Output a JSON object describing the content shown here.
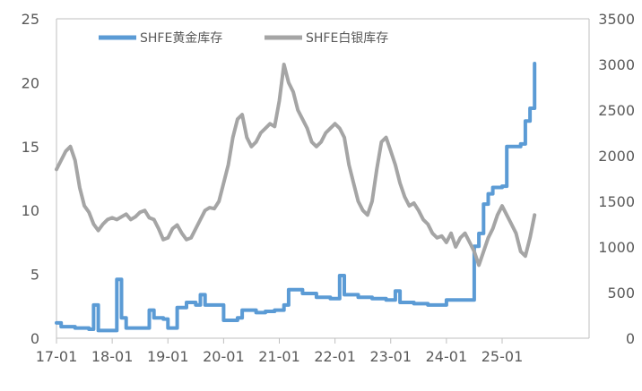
{
  "chart_data": {
    "type": "line",
    "legend": {
      "placement": "top"
    },
    "x_ticks": [
      "17-01",
      "18-01",
      "19-01",
      "20-01",
      "21-01",
      "22-01",
      "23-01",
      "24-01",
      "25-01"
    ],
    "y_left": {
      "ylim": [
        0,
        25
      ],
      "ticks": [
        "0",
        "5",
        "10",
        "15",
        "20",
        "25"
      ]
    },
    "y_right": {
      "ylim": [
        0,
        3500
      ],
      "ticks": [
        "0",
        "500",
        "1000",
        "1500",
        "2000",
        "2500",
        "3000",
        "3500"
      ]
    },
    "grid": false,
    "series": [
      {
        "name": "SHFE黄金库存",
        "axis": "left",
        "color": "#5B9BD5",
        "points": [
          [
            "17-01",
            1.2
          ],
          [
            "17-02",
            0.9
          ],
          [
            "17-05",
            0.8
          ],
          [
            "17-08",
            0.7
          ],
          [
            "17-09",
            2.6
          ],
          [
            "17-10",
            0.6
          ],
          [
            "17-12",
            0.6
          ],
          [
            "18-01",
            0.6
          ],
          [
            "18-02",
            4.6
          ],
          [
            "18-03",
            1.6
          ],
          [
            "18-04",
            0.8
          ],
          [
            "18-07",
            0.8
          ],
          [
            "18-09",
            2.2
          ],
          [
            "18-10",
            1.6
          ],
          [
            "18-12",
            1.5
          ],
          [
            "19-01",
            0.8
          ],
          [
            "19-03",
            2.4
          ],
          [
            "19-05",
            2.8
          ],
          [
            "19-07",
            2.6
          ],
          [
            "19-08",
            3.4
          ],
          [
            "19-09",
            2.6
          ],
          [
            "19-12",
            2.6
          ],
          [
            "20-01",
            1.4
          ],
          [
            "20-04",
            1.6
          ],
          [
            "20-05",
            2.2
          ],
          [
            "20-08",
            2.0
          ],
          [
            "20-10",
            2.1
          ],
          [
            "20-12",
            2.2
          ],
          [
            "21-02",
            2.6
          ],
          [
            "21-03",
            3.8
          ],
          [
            "21-06",
            3.5
          ],
          [
            "21-09",
            3.2
          ],
          [
            "21-12",
            3.1
          ],
          [
            "22-01",
            3.1
          ],
          [
            "22-02",
            4.9
          ],
          [
            "22-03",
            3.4
          ],
          [
            "22-06",
            3.2
          ],
          [
            "22-09",
            3.1
          ],
          [
            "22-12",
            3.0
          ],
          [
            "23-01",
            3.0
          ],
          [
            "23-02",
            3.7
          ],
          [
            "23-03",
            2.8
          ],
          [
            "23-06",
            2.7
          ],
          [
            "23-09",
            2.6
          ],
          [
            "23-11",
            2.6
          ],
          [
            "24-01",
            3.0
          ],
          [
            "24-06",
            3.0
          ],
          [
            "24-07",
            7.2
          ],
          [
            "24-08",
            8.2
          ],
          [
            "24-09",
            10.5
          ],
          [
            "24-10",
            11.3
          ],
          [
            "24-11",
            11.8
          ],
          [
            "25-01",
            11.9
          ],
          [
            "25-02",
            15.0
          ],
          [
            "25-04",
            15.0
          ],
          [
            "25-05",
            15.2
          ],
          [
            "25-06",
            17.0
          ],
          [
            "25-07",
            18.0
          ],
          [
            "25-08",
            21.5
          ]
        ]
      },
      {
        "name": "SHFE白银库存",
        "axis": "right",
        "color": "#A5A5A5",
        "points": [
          [
            "17-01",
            1850
          ],
          [
            "17-02",
            1950
          ],
          [
            "17-03",
            2050
          ],
          [
            "17-04",
            2100
          ],
          [
            "17-05",
            1950
          ],
          [
            "17-06",
            1650
          ],
          [
            "17-07",
            1450
          ],
          [
            "17-08",
            1380
          ],
          [
            "17-09",
            1250
          ],
          [
            "17-10",
            1180
          ],
          [
            "17-11",
            1250
          ],
          [
            "17-12",
            1300
          ],
          [
            "18-01",
            1320
          ],
          [
            "18-02",
            1300
          ],
          [
            "18-03",
            1330
          ],
          [
            "18-04",
            1360
          ],
          [
            "18-05",
            1300
          ],
          [
            "18-06",
            1330
          ],
          [
            "18-07",
            1380
          ],
          [
            "18-08",
            1400
          ],
          [
            "18-09",
            1320
          ],
          [
            "18-10",
            1300
          ],
          [
            "18-11",
            1200
          ],
          [
            "18-12",
            1080
          ],
          [
            "19-01",
            1100
          ],
          [
            "19-02",
            1200
          ],
          [
            "19-03",
            1240
          ],
          [
            "19-04",
            1150
          ],
          [
            "19-05",
            1080
          ],
          [
            "19-06",
            1100
          ],
          [
            "19-07",
            1200
          ],
          [
            "19-08",
            1300
          ],
          [
            "19-09",
            1400
          ],
          [
            "19-10",
            1430
          ],
          [
            "19-11",
            1420
          ],
          [
            "19-12",
            1500
          ],
          [
            "20-01",
            1700
          ],
          [
            "20-02",
            1900
          ],
          [
            "20-03",
            2200
          ],
          [
            "20-04",
            2400
          ],
          [
            "20-05",
            2450
          ],
          [
            "20-06",
            2200
          ],
          [
            "20-07",
            2100
          ],
          [
            "20-08",
            2150
          ],
          [
            "20-09",
            2250
          ],
          [
            "20-10",
            2300
          ],
          [
            "20-11",
            2350
          ],
          [
            "20-12",
            2320
          ],
          [
            "21-01",
            2600
          ],
          [
            "21-02",
            3000
          ],
          [
            "21-03",
            2800
          ],
          [
            "21-04",
            2700
          ],
          [
            "21-05",
            2500
          ],
          [
            "21-06",
            2400
          ],
          [
            "21-07",
            2300
          ],
          [
            "21-08",
            2150
          ],
          [
            "21-09",
            2100
          ],
          [
            "21-10",
            2150
          ],
          [
            "21-11",
            2250
          ],
          [
            "21-12",
            2300
          ],
          [
            "22-01",
            2350
          ],
          [
            "22-02",
            2300
          ],
          [
            "22-03",
            2200
          ],
          [
            "22-04",
            1900
          ],
          [
            "22-05",
            1700
          ],
          [
            "22-06",
            1500
          ],
          [
            "22-07",
            1400
          ],
          [
            "22-08",
            1350
          ],
          [
            "22-09",
            1500
          ],
          [
            "22-10",
            1850
          ],
          [
            "22-11",
            2150
          ],
          [
            "22-12",
            2200
          ],
          [
            "23-01",
            2050
          ],
          [
            "23-02",
            1900
          ],
          [
            "23-03",
            1700
          ],
          [
            "23-04",
            1550
          ],
          [
            "23-05",
            1450
          ],
          [
            "23-06",
            1480
          ],
          [
            "23-07",
            1400
          ],
          [
            "23-08",
            1300
          ],
          [
            "23-09",
            1250
          ],
          [
            "23-10",
            1150
          ],
          [
            "23-11",
            1100
          ],
          [
            "23-12",
            1120
          ],
          [
            "24-01",
            1050
          ],
          [
            "24-02",
            1150
          ],
          [
            "24-03",
            1000
          ],
          [
            "24-04",
            1100
          ],
          [
            "24-05",
            1150
          ],
          [
            "24-06",
            1050
          ],
          [
            "24-07",
            950
          ],
          [
            "24-08",
            800
          ],
          [
            "24-09",
            950
          ],
          [
            "24-10",
            1100
          ],
          [
            "24-11",
            1200
          ],
          [
            "24-12",
            1350
          ],
          [
            "25-01",
            1450
          ],
          [
            "25-02",
            1350
          ],
          [
            "25-03",
            1250
          ],
          [
            "25-04",
            1150
          ],
          [
            "25-05",
            950
          ],
          [
            "25-06",
            900
          ],
          [
            "25-07",
            1100
          ],
          [
            "25-08",
            1350
          ]
        ]
      }
    ]
  }
}
